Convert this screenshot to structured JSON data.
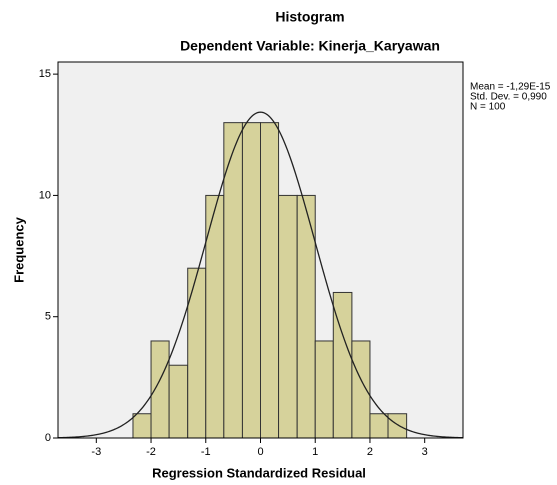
{
  "chart_data": {
    "type": "histogram",
    "title": "Histogram",
    "subtitle": "Dependent Variable: Kinerja_Karyawan",
    "x_label": "Regression Standardized Residual",
    "y_label": "Frequency",
    "bins": [
      -2.33,
      -2,
      -1.67,
      -1.33,
      -1,
      -0.67,
      -0.33,
      0,
      0.33,
      0.67,
      1,
      1.33,
      1.67,
      2,
      2.33,
      2.67
    ],
    "values": [
      1,
      4,
      3,
      7,
      10,
      13,
      13,
      13,
      10,
      10,
      4,
      6,
      4,
      1,
      1
    ],
    "color": "#d6d29b",
    "xlim": [
      -3.7,
      3.7
    ],
    "xticks": [
      -3,
      -2,
      -1,
      0,
      1,
      2,
      3
    ],
    "ylim": [
      0,
      15.5
    ],
    "yticks": [
      0,
      5,
      10,
      15
    ],
    "stats": [
      {
        "value": -1.29e-15,
        "label": "Mean = -1,29E-15"
      },
      {
        "value": 0.99,
        "label": "Std. Dev. = 0,990"
      },
      {
        "value": 100,
        "label": "N = 100"
      }
    ],
    "normal_curve": true
  }
}
